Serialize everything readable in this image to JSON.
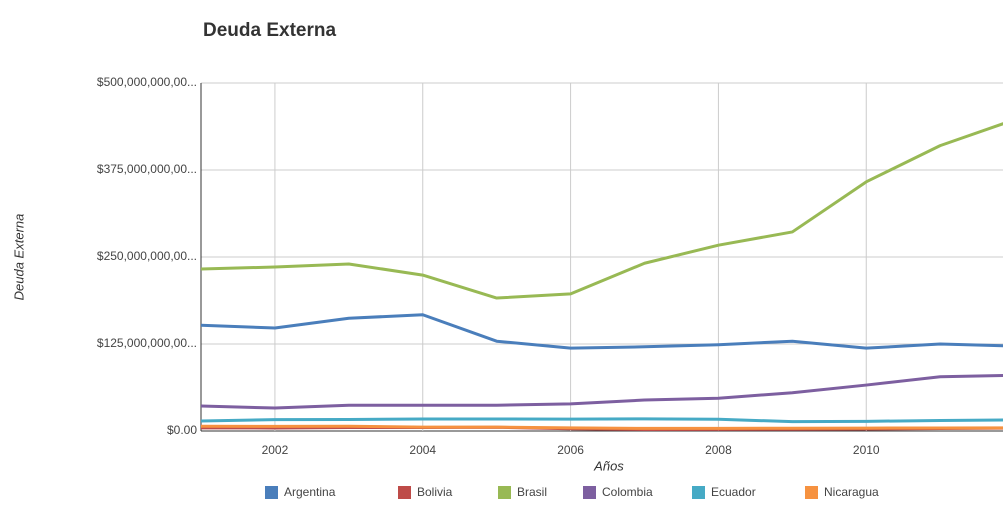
{
  "chart_data": {
    "type": "line",
    "title": "Deuda Externa",
    "x_label": "Años",
    "y_label": "Deuda Externa",
    "x": [
      2001,
      2002,
      2003,
      2004,
      2005,
      2006,
      2007,
      2008,
      2009,
      2010,
      2011,
      2012
    ],
    "xlim": [
      2001,
      2011.85
    ],
    "xticks": [
      2002,
      2004,
      2006,
      2008,
      2010
    ],
    "ylim": [
      0,
      500000000000
    ],
    "yticks": [
      {
        "value": 0,
        "label": "$0.00"
      },
      {
        "value": 125000000000,
        "label": "$125,000,000,00..."
      },
      {
        "value": 250000000000,
        "label": "$250,000,000,00..."
      },
      {
        "value": 375000000000,
        "label": "$375,000,000,00..."
      },
      {
        "value": 500000000000,
        "label": "$500,000,000,00..."
      }
    ],
    "grid": true,
    "legend": "bottom",
    "series": [
      {
        "name": "Argentina",
        "color": "#4a7ebb",
        "values": [
          152000000000,
          148000000000,
          162000000000,
          167000000000,
          129000000000,
          119000000000,
          121000000000,
          124000000000,
          129000000000,
          119000000000,
          125000000000,
          122000000000
        ]
      },
      {
        "name": "Bolivia",
        "color": "#be4b48",
        "values": [
          4500000000,
          4400000000,
          5100000000,
          5000000000,
          5300000000,
          3200000000,
          2200000000,
          2400000000,
          2600000000,
          2800000000,
          3500000000,
          4200000000
        ]
      },
      {
        "name": "Brasil",
        "color": "#98b954",
        "values": [
          232800000000,
          235600000000,
          240000000000,
          224000000000,
          191000000000,
          197000000000,
          241000000000,
          267000000000,
          286000000000,
          358000000000,
          410000000000,
          447000000000
        ]
      },
      {
        "name": "Colombia",
        "color": "#7d5fa0",
        "values": [
          36000000000,
          33000000000,
          37000000000,
          37000000000,
          37000000000,
          39000000000,
          44500000000,
          47000000000,
          55000000000,
          66000000000,
          78000000000,
          80000000000
        ]
      },
      {
        "name": "Ecuador",
        "color": "#46aac5",
        "values": [
          14400000000,
          16300000000,
          16600000000,
          17200000000,
          17200000000,
          17100000000,
          17500000000,
          16800000000,
          13500000000,
          13900000000,
          15100000000,
          16000000000
        ]
      },
      {
        "name": "Nicaragua",
        "color": "#f69240",
        "values": [
          6800000000,
          6600000000,
          6900000000,
          5600000000,
          5500000000,
          4500000000,
          3700000000,
          3700000000,
          4000000000,
          4200000000,
          4400000000,
          4500000000
        ]
      }
    ]
  }
}
